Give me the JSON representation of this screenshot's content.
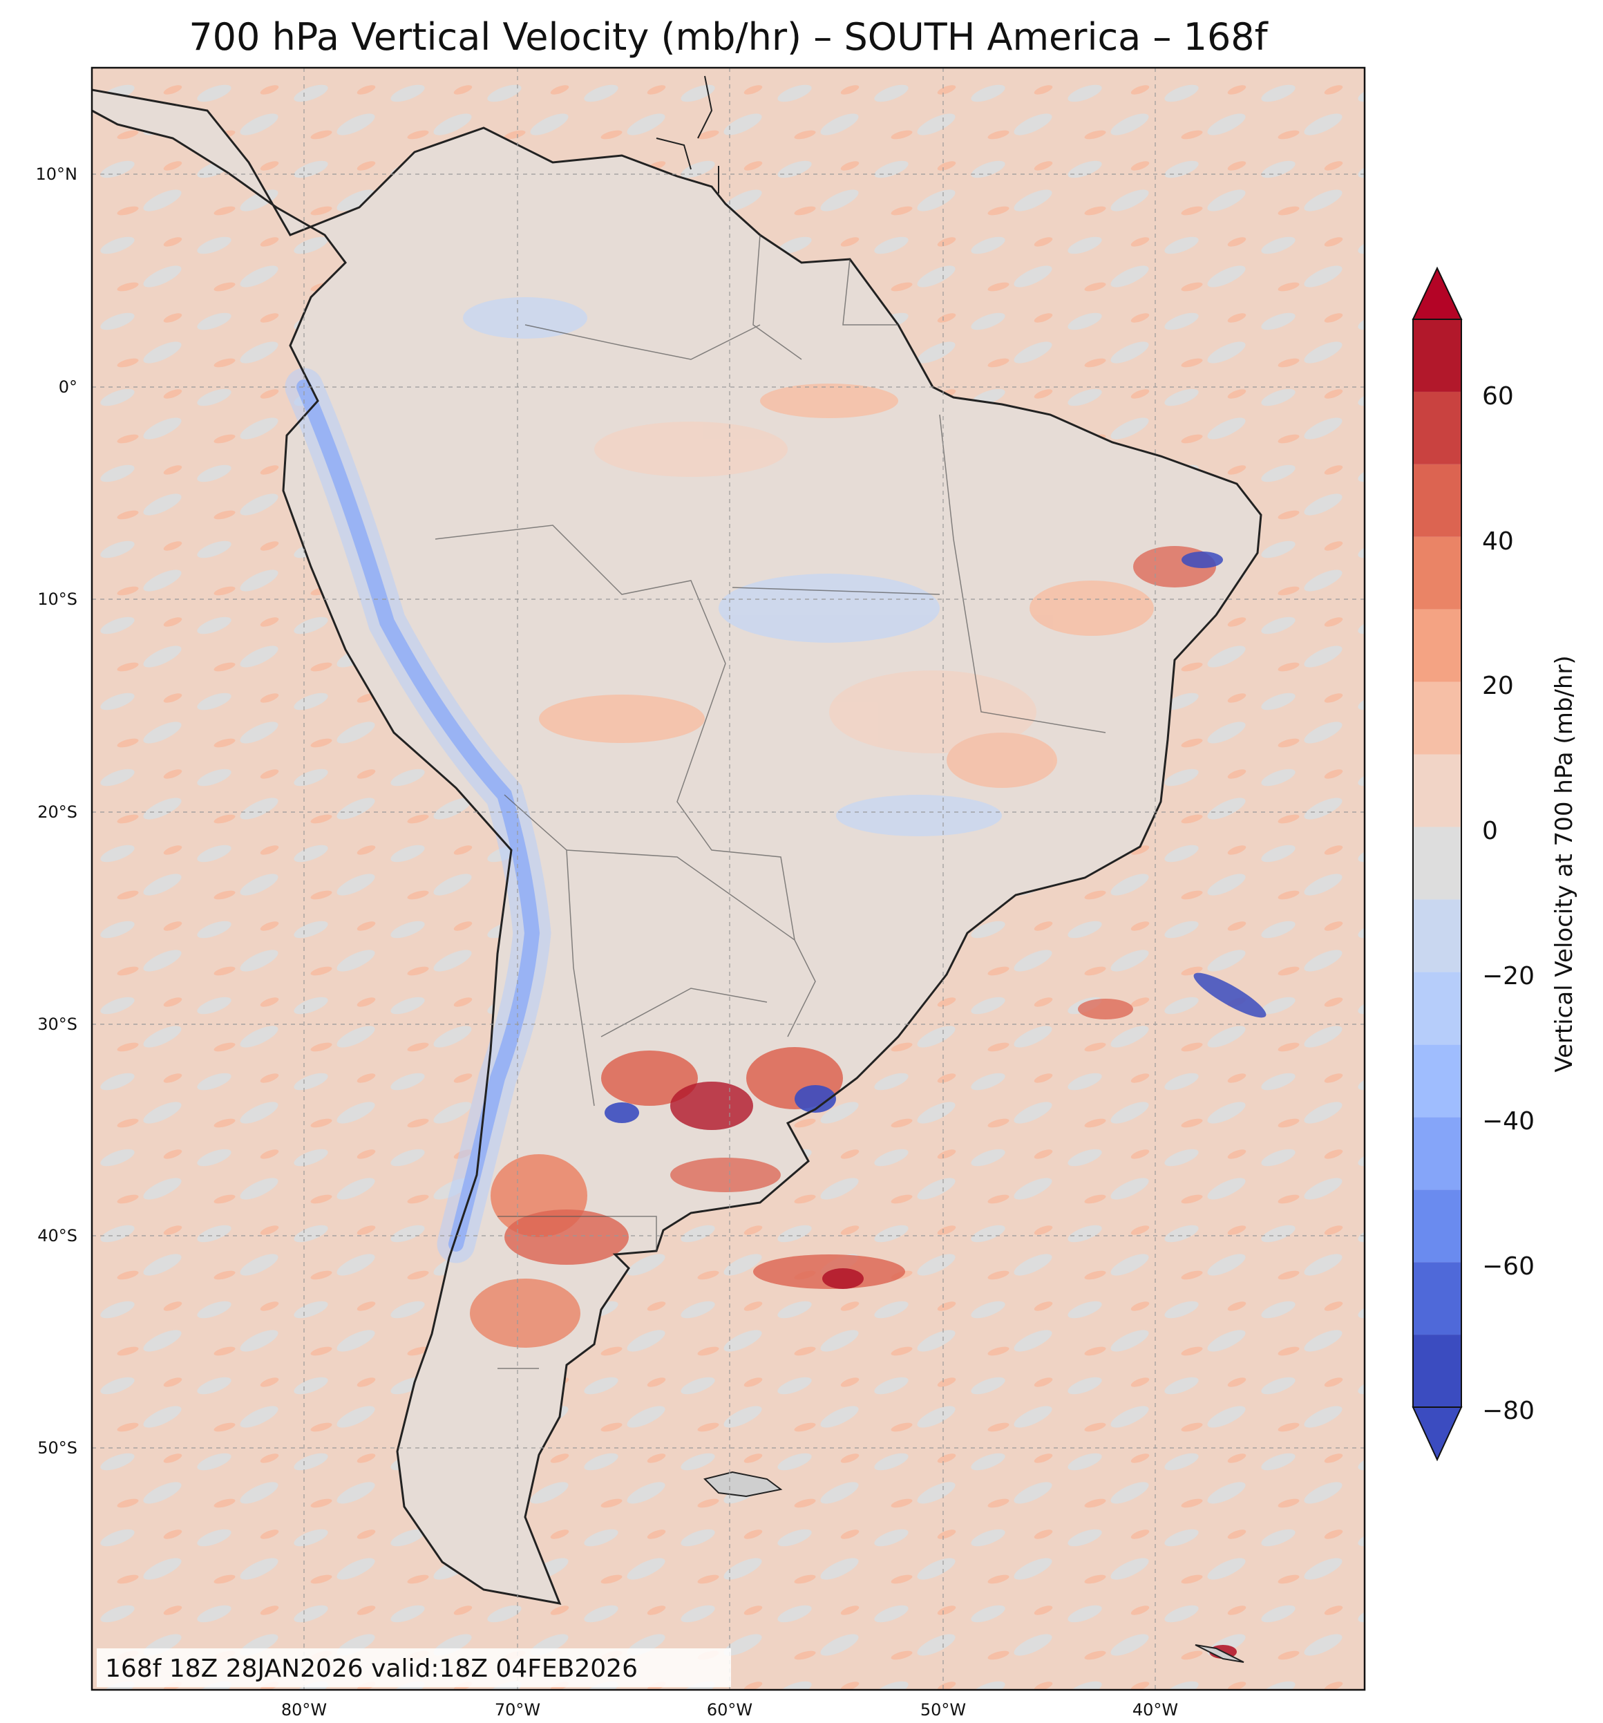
{
  "title": "700 hPa Vertical Velocity (mb/hr) – SOUTH America – 168f",
  "map": {
    "region": "South America",
    "lon_range": [
      -90,
      -30
    ],
    "lat_range": [
      -61,
      15
    ],
    "lon_ticks": [
      "80°W",
      "70°W",
      "60°W",
      "50°W",
      "40°W"
    ],
    "lat_ticks": [
      "10°N",
      "0°",
      "10°S",
      "20°S",
      "30°S",
      "40°S",
      "50°S"
    ]
  },
  "colorbar": {
    "label": "Vertical Velocity at 700 hPa (mb/hr)",
    "ticks": [
      "60",
      "40",
      "20",
      "0",
      "−20",
      "−40",
      "−60",
      "−80"
    ],
    "levels": [
      -80,
      -70,
      -60,
      -50,
      -40,
      -30,
      -20,
      -10,
      0,
      10,
      20,
      30,
      40,
      50,
      60,
      70
    ],
    "colors": [
      "#3b4cc0",
      "#4f69d9",
      "#6a8bef",
      "#85a5f9",
      "#9fbdfe",
      "#b6cdfa",
      "#c9d7f0",
      "#dddddd",
      "#f1d4c6",
      "#f6bfa6",
      "#f4a383",
      "#ea8466",
      "#dc6451",
      "#c94240",
      "#b2182b"
    ],
    "under_color": "#3b4cc0",
    "over_color": "#b40426"
  },
  "stamp": "168f 18Z 28JAN2026 valid:18Z 04FEB2026"
}
